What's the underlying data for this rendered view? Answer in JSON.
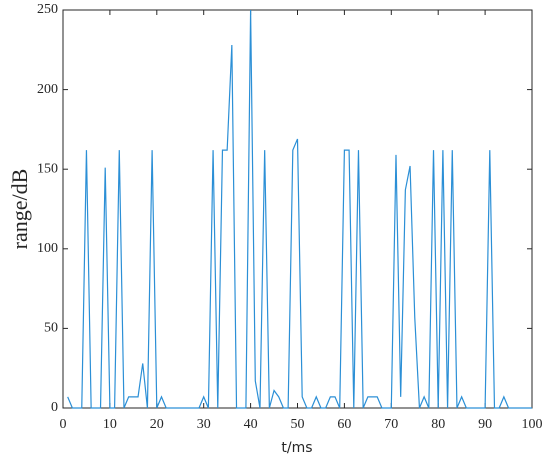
{
  "chart_data": {
    "type": "line",
    "x_label": "t/ms",
    "y_label": "range/dB",
    "x": [
      1,
      2,
      3,
      4,
      5,
      6,
      7,
      8,
      9,
      10,
      11,
      12,
      13,
      14,
      15,
      16,
      17,
      18,
      19,
      20,
      21,
      22,
      23,
      24,
      25,
      26,
      27,
      28,
      29,
      30,
      31,
      32,
      33,
      34,
      35,
      36,
      37,
      38,
      39,
      40,
      41,
      42,
      43,
      44,
      45,
      46,
      47,
      48,
      49,
      50,
      51,
      52,
      53,
      54,
      55,
      56,
      57,
      58,
      59,
      60,
      61,
      62,
      63,
      64,
      65,
      66,
      67,
      68,
      69,
      70,
      71,
      72,
      73,
      74,
      75,
      76,
      77,
      78,
      79,
      80,
      81,
      82,
      83,
      84,
      85,
      86,
      87,
      88,
      89,
      90,
      91,
      92,
      93,
      94,
      95,
      96,
      97,
      98,
      99,
      100
    ],
    "series": [
      {
        "color": "#2b8fd6",
        "values": [
          7,
          0,
          0,
          0,
          162,
          0,
          0,
          0,
          151,
          0,
          0,
          162,
          0,
          7,
          7,
          7,
          28,
          0,
          162,
          0,
          7,
          0,
          0,
          0,
          0,
          0,
          0,
          0,
          0,
          7,
          0,
          162,
          0,
          162,
          162,
          228,
          0,
          0,
          0,
          250,
          17,
          0,
          162,
          0,
          11,
          7,
          0,
          0,
          162,
          169,
          7,
          0,
          0,
          7,
          0,
          0,
          7,
          7,
          0,
          162,
          162,
          0,
          162,
          0,
          7,
          7,
          7,
          0,
          0,
          0,
          159,
          7,
          137,
          152,
          57,
          0,
          7,
          0,
          162,
          0,
          162,
          0,
          162,
          0,
          7,
          0,
          0,
          0,
          0,
          0,
          162,
          0,
          0,
          7,
          0,
          0,
          0,
          0,
          0,
          0
        ]
      }
    ],
    "xlim": [
      0,
      100
    ],
    "ylim": [
      0,
      250
    ],
    "xticks": [
      0,
      10,
      20,
      30,
      40,
      50,
      60,
      70,
      80,
      90,
      100
    ],
    "yticks": [
      0,
      50,
      100,
      150,
      200,
      250
    ]
  }
}
